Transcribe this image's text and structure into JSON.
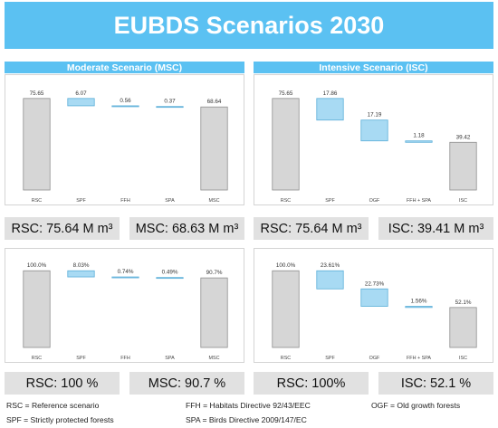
{
  "title": "EUBDS Scenarios 2030",
  "panels": {
    "moderate_header": "Moderate Scenario (MSC)",
    "intensive_header": "Intensive Scenario (ISC)"
  },
  "stats": {
    "row1": [
      "RSC: 75.64 M m³",
      "MSC: 68.63 M m³",
      "RSC: 75.64 M m³",
      "ISC: 39.41 M m³"
    ],
    "row2": [
      "RSC: 100 %",
      "MSC: 90.7 %",
      "RSC: 100%",
      "ISC: 52.1 %"
    ]
  },
  "legend": {
    "rsc": "RSC = Reference scenario",
    "spf": "SPF = Strictly protected forests",
    "ffh": "FFH = Habitats Directive 92/43/EEC",
    "spa": "SPA = Birds Directive 2009/147/EC",
    "ogf": "OGF = Old growth forests"
  },
  "colors": {
    "accent": "#5bc1f2",
    "step_fill": "#a8daf3",
    "total_fill": "#d6d6d6",
    "stat_bg": "#e1e1e1"
  },
  "chart_data": [
    {
      "type": "waterfall",
      "categories": [
        "RSC",
        "SPF",
        "FFH",
        "SPA",
        "MSC"
      ],
      "values": [
        75.65,
        -6.07,
        -0.56,
        -0.37,
        68.64
      ],
      "labels": [
        "75.65",
        "6.07",
        "0.56",
        "0.37",
        "68.64"
      ],
      "kinds": [
        "total",
        "step",
        "step",
        "step",
        "total"
      ],
      "ylim": [
        0,
        80
      ]
    },
    {
      "type": "waterfall",
      "categories": [
        "RSC",
        "SPF",
        "OGF",
        "FFH + SPA",
        "ISC"
      ],
      "values": [
        75.65,
        -17.86,
        -17.19,
        -1.18,
        39.42
      ],
      "labels": [
        "75.65",
        "17.86",
        "17.19",
        "1.18",
        "39.42"
      ],
      "kinds": [
        "total",
        "step",
        "step",
        "step",
        "total"
      ],
      "ylim": [
        0,
        80
      ]
    },
    {
      "type": "waterfall",
      "categories": [
        "RSC",
        "SPF",
        "FFH",
        "SPA",
        "MSC"
      ],
      "values": [
        100.0,
        -8.03,
        -0.74,
        -0.49,
        90.7
      ],
      "labels": [
        "100.0%",
        "8.03%",
        "0.74%",
        "0.49%",
        "90.7%"
      ],
      "kinds": [
        "total",
        "step",
        "step",
        "step",
        "total"
      ],
      "ylim": [
        0,
        105
      ]
    },
    {
      "type": "waterfall",
      "categories": [
        "RSC",
        "SPF",
        "OGF",
        "FFH + SPA",
        "ISC"
      ],
      "values": [
        100.0,
        -23.61,
        -22.73,
        -1.56,
        52.1
      ],
      "labels": [
        "100.0%",
        "23.61%",
        "22.73%",
        "1.56%",
        "52.1%"
      ],
      "kinds": [
        "total",
        "step",
        "step",
        "step",
        "total"
      ],
      "ylim": [
        0,
        105
      ]
    }
  ]
}
